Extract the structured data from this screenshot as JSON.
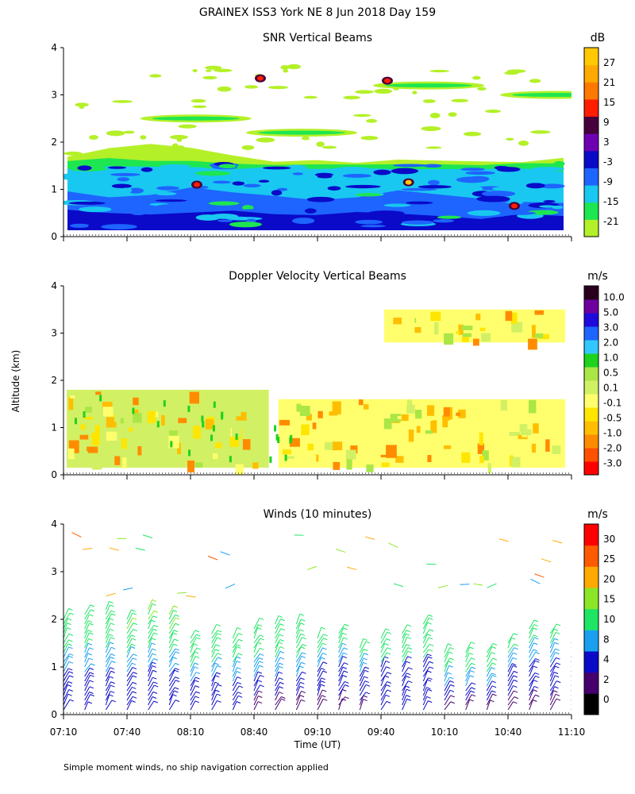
{
  "title": "GRAINEX ISS3 York NE   8 Jun 2018 Day 159",
  "ylabel": "Altitude (km)",
  "xlabel": "Time (UT)",
  "footnote": "Simple moment winds, no ship navigation correction applied",
  "x_ticks": [
    "07:10",
    "07:40",
    "08:10",
    "08:40",
    "09:10",
    "09:40",
    "10:10",
    "10:40",
    "11:10"
  ],
  "chart_data": [
    {
      "type": "heatmap",
      "title": "SNR Vertical Beams",
      "colorbar_unit": "dB",
      "colorbar_ticks": [
        "27",
        "21",
        "15",
        "9",
        "3",
        "-3",
        "-9",
        "-15",
        "-21"
      ],
      "colorbar_colors": [
        "#b4f028",
        "#1ee650",
        "#19c8f0",
        "#1e64ff",
        "#0a0ac8",
        "#6e00b4",
        "#46003c",
        "#ff1e00",
        "#ff7800",
        "#ffaa00",
        "#ffc800"
      ],
      "x_range": [
        "07:10",
        "11:10"
      ],
      "ylim": [
        0,
        4
      ],
      "y_ticks": [
        0,
        1,
        2,
        3,
        4
      ],
      "layers": [
        {
          "level": "-21",
          "color": "#b4f028",
          "base_km": [
            1.7,
            1.9,
            1.95,
            1.85,
            1.7,
            1.6,
            1.6,
            1.55,
            1.65,
            1.6,
            1.6,
            1.6,
            1.7
          ]
        },
        {
          "level": "-15",
          "color": "#1ee650",
          "base_km": [
            1.6,
            1.65,
            1.6,
            1.6,
            1.55,
            1.5,
            1.55,
            1.5,
            1.55,
            1.5,
            1.5,
            1.55,
            1.55
          ]
        },
        {
          "level": "-9",
          "color": "#19c8f0",
          "base_km": [
            1.45,
            1.5,
            1.5,
            1.45,
            1.45,
            1.45,
            1.4,
            1.45,
            1.45,
            1.4,
            1.45,
            1.45,
            1.4
          ]
        },
        {
          "level": "-3",
          "color": "#1e64ff",
          "base_km": [
            0.95,
            0.85,
            0.9,
            1.05,
            0.95,
            0.85,
            0.8,
            0.85,
            1.0,
            0.9,
            0.8,
            0.75,
            0.7
          ]
        },
        {
          "level": "3",
          "color": "#0a0ac8",
          "base_km": [
            0.55,
            0.5,
            0.45,
            0.5,
            0.55,
            0.5,
            0.45,
            0.5,
            0.5,
            0.45,
            0.4,
            0.45,
            0.45
          ]
        }
      ],
      "upper_echo": [
        {
          "time": "09:40",
          "altitude_km": 3.2,
          "level": "-21"
        },
        {
          "time": "10:40",
          "altitude_km": 3.0,
          "level": "-21"
        },
        {
          "time": "07:50",
          "altitude_km": 2.5,
          "level": "-21"
        },
        {
          "time": "08:40",
          "altitude_km": 2.2,
          "level": "-21"
        }
      ],
      "hot_spots": [
        {
          "time": "08:10",
          "altitude_km": 1.1,
          "level": "15"
        },
        {
          "time": "09:50",
          "altitude_km": 1.15,
          "level": "27"
        },
        {
          "time": "08:40",
          "altitude_km": 3.35,
          "level": "15"
        },
        {
          "time": "09:40",
          "altitude_km": 3.3,
          "level": "15"
        },
        {
          "time": "10:40",
          "altitude_km": 0.65,
          "level": "15"
        }
      ]
    },
    {
      "type": "heatmap",
      "title": "Doppler Velocity Vertical Beams",
      "colorbar_unit": "m/s",
      "colorbar_ticks": [
        "10.0",
        "5.0",
        "3.0",
        "2.0",
        "1.0",
        "0.5",
        "0.1",
        "-0.1",
        "-0.5",
        "-1.0",
        "-2.0",
        "-3.0"
      ],
      "colorbar_colors": [
        "#ff0000",
        "#ff5000",
        "#ff8c00",
        "#ffbe00",
        "#ffe600",
        "#ffff6e",
        "#d2f064",
        "#aae646",
        "#1ed21e",
        "#32c8ff",
        "#1e64ff",
        "#1e0adc",
        "#6e00a0",
        "#28001e"
      ],
      "x_range": [
        "07:10",
        "11:10"
      ],
      "ylim": [
        0,
        4
      ],
      "y_ticks": [
        0,
        1,
        2,
        3,
        4
      ],
      "regions": [
        {
          "time_range": [
            "07:10",
            "08:50"
          ],
          "altitude_km": [
            0.15,
            1.8
          ],
          "dominant": "0.1"
        },
        {
          "time_range": [
            "08:50",
            "11:10"
          ],
          "altitude_km": [
            0.15,
            1.6
          ],
          "dominant": "-0.1"
        },
        {
          "time_range": [
            "09:40",
            "11:10"
          ],
          "altitude_km": [
            2.8,
            3.5
          ],
          "dominant": "-0.1"
        }
      ]
    },
    {
      "type": "barbs",
      "title": "Winds (10 minutes)",
      "colorbar_unit": "m/s",
      "colorbar_ticks": [
        "30",
        "25",
        "20",
        "15",
        "10",
        "8",
        "4",
        "2",
        "0"
      ],
      "colorbar_colors": [
        "#000000",
        "#46006e",
        "#0a0ac8",
        "#19a0f0",
        "#1ee664",
        "#8ce628",
        "#ffaa00",
        "#ff5a00",
        "#ff0000"
      ],
      "x_range": [
        "07:10",
        "11:10"
      ],
      "ylim": [
        0,
        4
      ],
      "y_ticks": [
        0,
        1,
        2,
        3,
        4
      ],
      "profiles": [
        {
          "time": "07:10",
          "top_km": 2.3,
          "speed_ms": [
            4,
            6,
            8,
            10,
            12
          ]
        },
        {
          "time": "07:40",
          "top_km": 2.3,
          "speed_ms": [
            4,
            6,
            8,
            10,
            14
          ]
        },
        {
          "time": "08:10",
          "top_km": 2.0,
          "speed_ms": [
            4,
            6,
            8,
            12,
            12
          ]
        },
        {
          "time": "08:40",
          "top_km": 2.0,
          "speed_ms": [
            2,
            4,
            8,
            10,
            12
          ]
        },
        {
          "time": "09:10",
          "top_km": 1.8,
          "speed_ms": [
            2,
            4,
            6,
            8,
            10
          ]
        },
        {
          "time": "09:40",
          "top_km": 2.0,
          "speed_ms": [
            4,
            4,
            6,
            10,
            12
          ]
        },
        {
          "time": "10:10",
          "top_km": 1.7,
          "speed_ms": [
            2,
            4,
            8,
            10,
            10
          ]
        },
        {
          "time": "10:40",
          "top_km": 1.9,
          "speed_ms": [
            2,
            4,
            6,
            8,
            10
          ]
        },
        {
          "time": "11:10",
          "top_km": 1.9,
          "speed_ms": [
            2,
            4,
            4,
            6,
            8
          ]
        }
      ]
    }
  ]
}
